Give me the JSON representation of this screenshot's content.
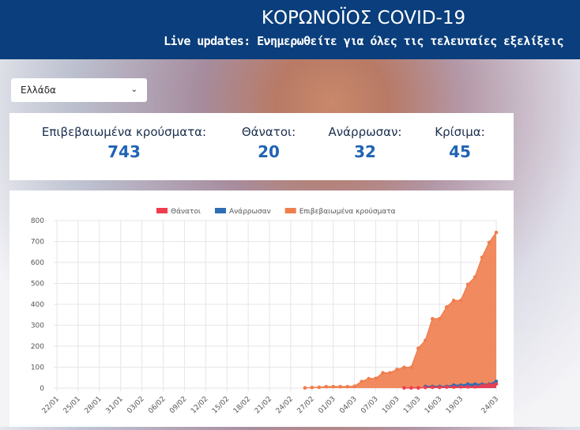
{
  "header": {
    "title": "ΚΟΡΩΝΟΪΟΣ COVID-19",
    "subtitle": "Live updates: Ενημερωθείτε για όλες τις τελευταίες εξελίξεις"
  },
  "country_select": {
    "selected": "Ελλάδα"
  },
  "stats": [
    {
      "label": "Επιβεβαιωμένα κρούσματα:",
      "value": 743
    },
    {
      "label": "Θάνατοι:",
      "value": 20
    },
    {
      "label": "Ανάρρωσαν:",
      "value": 32
    },
    {
      "label": "Κρίσιμα:",
      "value": 45
    }
  ],
  "chart_data": {
    "type": "area",
    "categories": [
      "22/01",
      null,
      null,
      "25/01",
      null,
      null,
      "28/01",
      null,
      null,
      "31/01",
      null,
      null,
      "03/02",
      null,
      null,
      "06/02",
      null,
      null,
      "09/02",
      null,
      null,
      "12/02",
      null,
      null,
      "15/02",
      null,
      null,
      "18/02",
      null,
      null,
      "21/02",
      null,
      null,
      "24/02",
      null,
      null,
      "27/02",
      null,
      null,
      "01/03",
      null,
      null,
      "04/03",
      null,
      null,
      "07/03",
      null,
      null,
      "10/03",
      null,
      null,
      "13/03",
      null,
      null,
      "16/03",
      null,
      null,
      "19/03",
      null,
      null,
      null,
      null,
      "24/03"
    ],
    "series": [
      {
        "name": "Θάνατοι",
        "color": "#ef3d4f",
        "values": [
          null,
          null,
          null,
          null,
          null,
          null,
          null,
          null,
          null,
          null,
          null,
          null,
          null,
          null,
          null,
          null,
          null,
          null,
          null,
          null,
          null,
          null,
          null,
          null,
          null,
          null,
          null,
          null,
          null,
          null,
          null,
          null,
          null,
          null,
          null,
          null,
          null,
          null,
          null,
          null,
          null,
          null,
          null,
          null,
          null,
          null,
          null,
          null,
          null,
          1,
          1,
          1,
          3,
          4,
          4,
          5,
          5,
          6,
          6,
          6,
          13,
          17,
          20
        ]
      },
      {
        "name": "Ανάρρωσαν",
        "color": "#2f6db5",
        "values": [
          null,
          null,
          null,
          null,
          null,
          null,
          null,
          null,
          null,
          null,
          null,
          null,
          null,
          null,
          null,
          null,
          null,
          null,
          null,
          null,
          null,
          null,
          null,
          null,
          null,
          null,
          null,
          null,
          null,
          null,
          null,
          null,
          null,
          null,
          null,
          null,
          null,
          null,
          null,
          null,
          null,
          null,
          null,
          null,
          null,
          null,
          null,
          null,
          null,
          null,
          null,
          null,
          8,
          8,
          8,
          8,
          14,
          14,
          19,
          19,
          19,
          19,
          32
        ]
      },
      {
        "name": "Επιβεβαιωμένα κρούσματα",
        "color": "#ef7e4e",
        "values": [
          null,
          null,
          null,
          null,
          null,
          null,
          null,
          null,
          null,
          null,
          null,
          null,
          null,
          null,
          null,
          null,
          null,
          null,
          null,
          null,
          null,
          null,
          null,
          null,
          null,
          null,
          null,
          null,
          null,
          null,
          null,
          null,
          null,
          null,
          null,
          1,
          3,
          4,
          7,
          7,
          7,
          7,
          9,
          31,
          45,
          46,
          73,
          73,
          89,
          99,
          99,
          190,
          228,
          331,
          331,
          387,
          418,
          418,
          495,
          530,
          624,
          695,
          743
        ]
      }
    ],
    "ylim": [
      0,
      800
    ],
    "yticks": [
      0,
      100,
      200,
      300,
      400,
      500,
      600,
      700,
      800
    ],
    "grid": true,
    "legend": "top"
  }
}
